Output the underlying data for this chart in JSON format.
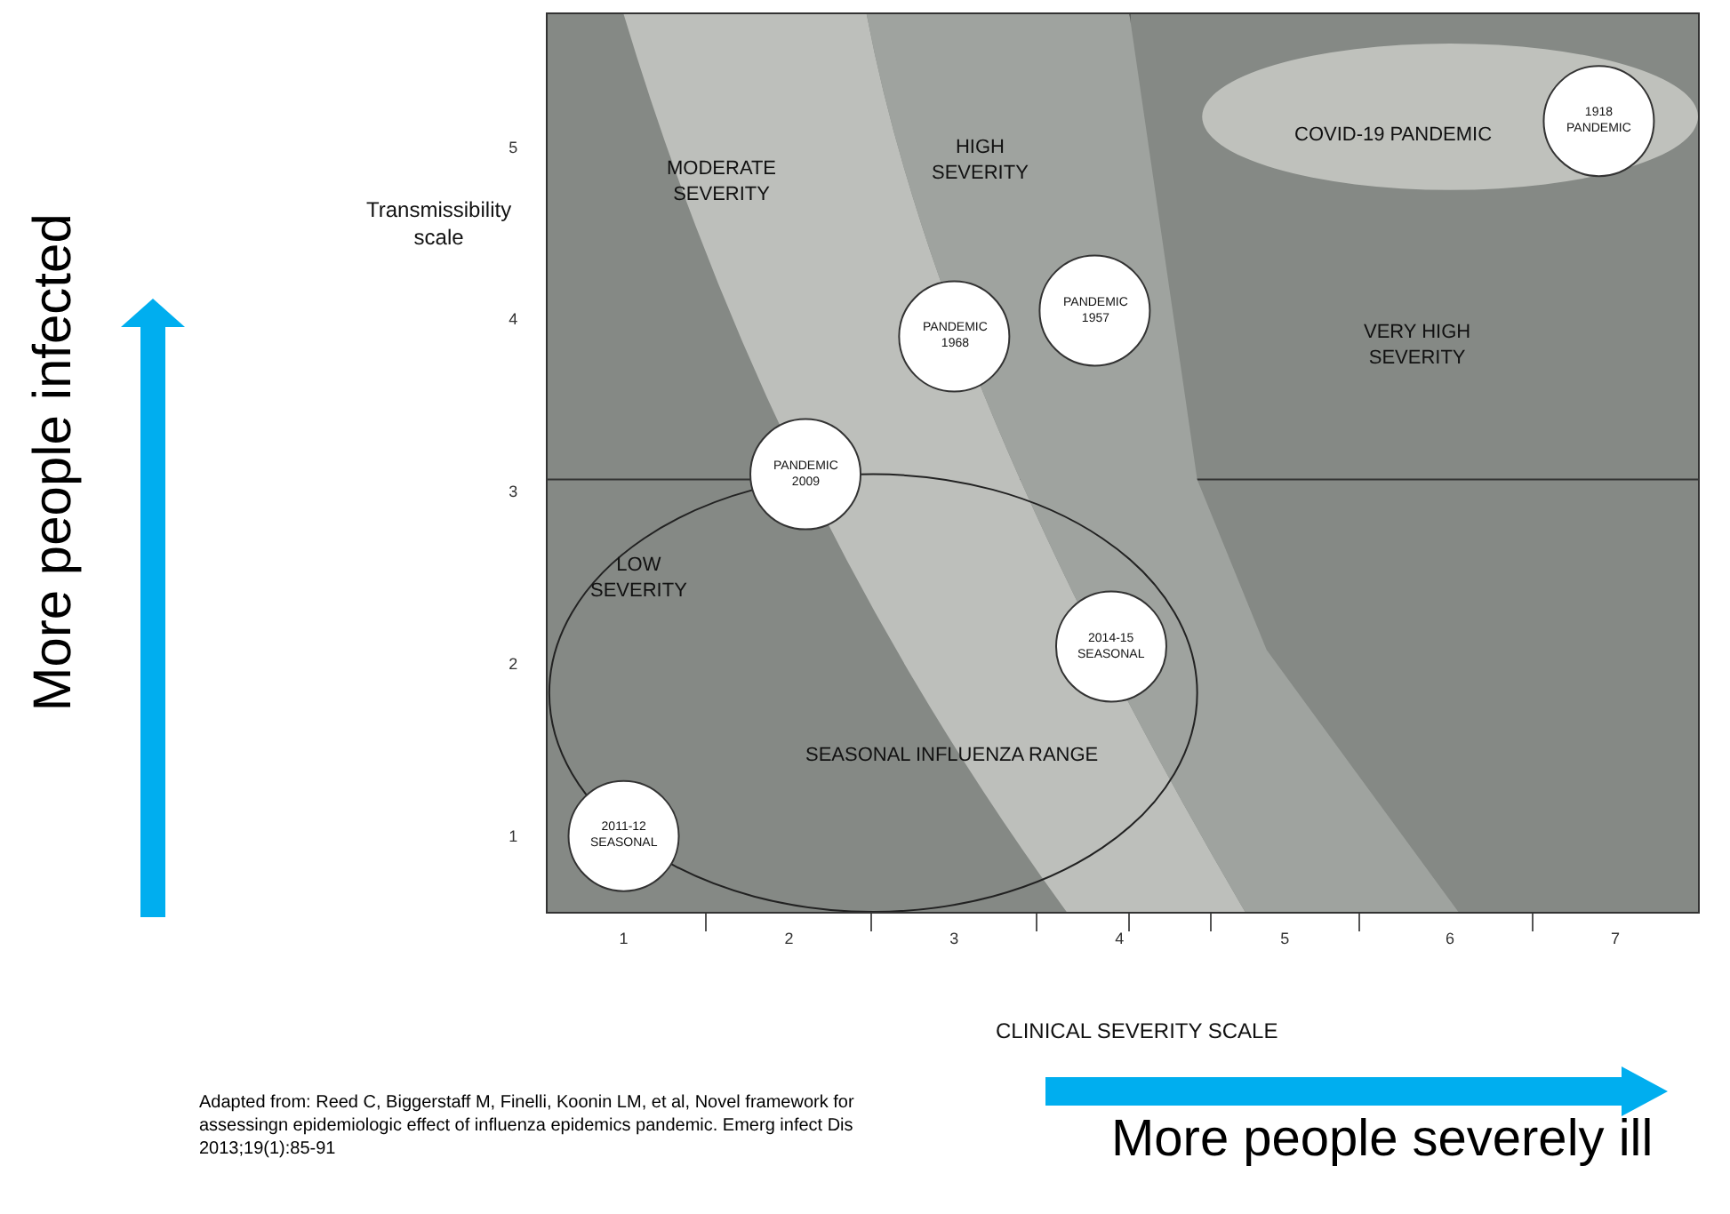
{
  "chart_data": {
    "type": "scatter",
    "xlabel": "CLINICAL SEVERITY SCALE",
    "ylabel": "Transmissibility\nscale",
    "x": [
      1.0,
      2.1,
      3.0,
      3.85,
      3.95,
      6.9
    ],
    "series": [
      {
        "color": "#ffffff",
        "values": [
          1.0,
          3.1,
          3.9,
          4.05,
          2.1,
          5.15
        ]
      }
    ],
    "marker": "circle",
    "xlim": [
      0.54,
      7.5
    ],
    "xticks": [
      1,
      {
        "value": 1.5,
        "label": null
      },
      2,
      {
        "value": 2.5,
        "label": null
      },
      3,
      {
        "value": 3.5,
        "label": null
      },
      4,
      {
        "value": 4.06,
        "label": null
      },
      {
        "value": 4.55,
        "label": null
      },
      5,
      {
        "value": 5.45,
        "label": null
      },
      6,
      {
        "value": 6.5,
        "label": null
      },
      7
    ],
    "ylim": [
      0.56,
      5.77
    ],
    "yticks": [
      1,
      2,
      3,
      4,
      5
    ],
    "ref_lines": [
      {
        "axis": "y",
        "value": 3.07,
        "color": "#333333"
      }
    ],
    "grid": false,
    "annotations": [
      {
        "text": "2011-12\nSEASONAL",
        "x": 1.0,
        "y": 1.0
      },
      {
        "text": "PANDEMIC\n2009",
        "x": 2.1,
        "y": 3.1
      },
      {
        "text": "PANDEMIC\n1968",
        "x": 3.0,
        "y": 3.9
      },
      {
        "text": "PANDEMIC\n1957",
        "x": 3.85,
        "y": 4.05
      },
      {
        "text": "2014-15\nSEASONAL",
        "x": 3.95,
        "y": 2.1
      },
      {
        "text": "1918\nPANDEMIC",
        "x": 6.9,
        "y": 5.15
      },
      "MODERATE\nSEVERITY",
      "HIGH\nSEVERITY",
      "VERY HIGH\nSEVERITY",
      "LOW\nSEVERITY",
      "SEASONAL INFLUENZA RANGE",
      "COVID-19 PANDEMIC",
      "More people infected",
      "More people severely ill",
      "Adapted from: Reed C, Biggerstaff M, Finelli, Koonin LM, et al, Novel framework for\nassessingn epidemiologic effect of influenza epidemics pandemic. Emerg infect Dis\n2013;19(1):85-91"
    ]
  }
}
